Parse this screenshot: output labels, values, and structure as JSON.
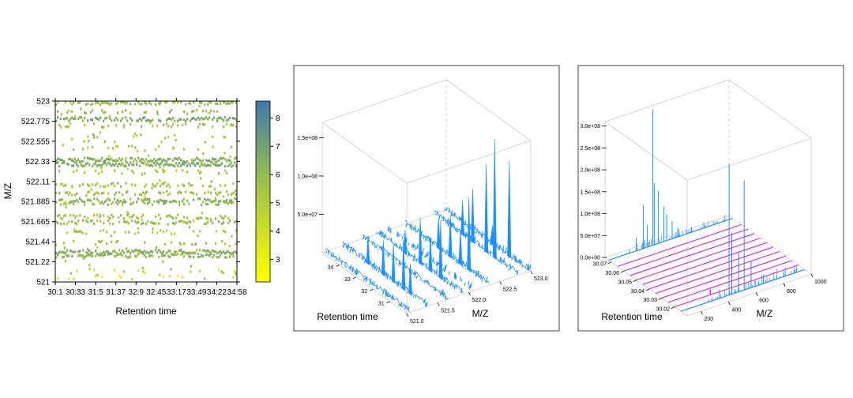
{
  "colors": {
    "background": "#ffffff",
    "panel_border": "#444444",
    "box_line": "#cccccc",
    "spectrum_blue": "#1e90ff",
    "series_magenta": "#e020e0",
    "colorbar_low": "#ffff00",
    "colorbar_mid": "#9cc24a",
    "colorbar_high": "#3f7aa8"
  },
  "chart_data": [
    {
      "type": "heatmap",
      "xlabel": "Retention time",
      "ylabel": "M/Z",
      "x_ticks": [
        "30:1",
        "30:33",
        "31:5",
        "31:37",
        "32:9",
        "32:45",
        "33:17",
        "33:49",
        "34:22",
        "34:58"
      ],
      "y_ticks": [
        "521",
        "521.22",
        "521.44",
        "521.665",
        "521.885",
        "522.11",
        "522.33",
        "522.555",
        "522.775",
        "523"
      ],
      "ylim": [
        521,
        523
      ],
      "colorbar": {
        "range": [
          2.2,
          8.6
        ],
        "ticks": [
          "3",
          "4",
          "5",
          "6",
          "7",
          "8"
        ],
        "colors": [
          "#ffff00",
          "#9cc24a",
          "#3f7aa8"
        ]
      },
      "bands": [
        {
          "mz": 522.98,
          "intensity": 5.8,
          "density": 0.55
        },
        {
          "mz": 522.88,
          "intensity": 6.0,
          "density": 0.25
        },
        {
          "mz": 522.8,
          "intensity": 6.6,
          "density": 0.8
        },
        {
          "mz": 522.73,
          "intensity": 5.5,
          "density": 0.3
        },
        {
          "mz": 522.6,
          "intensity": 5.0,
          "density": 0.12
        },
        {
          "mz": 522.48,
          "intensity": 5.2,
          "density": 0.15
        },
        {
          "mz": 522.35,
          "intensity": 6.4,
          "density": 0.85
        },
        {
          "mz": 522.3,
          "intensity": 6.6,
          "density": 0.9
        },
        {
          "mz": 522.22,
          "intensity": 5.3,
          "density": 0.2
        },
        {
          "mz": 522.07,
          "intensity": 5.4,
          "density": 0.4
        },
        {
          "mz": 521.98,
          "intensity": 5.6,
          "density": 0.45
        },
        {
          "mz": 521.9,
          "intensity": 6.2,
          "density": 0.6
        },
        {
          "mz": 521.87,
          "intensity": 5.9,
          "density": 0.55
        },
        {
          "mz": 521.72,
          "intensity": 5.5,
          "density": 0.45
        },
        {
          "mz": 521.66,
          "intensity": 5.8,
          "density": 0.6
        },
        {
          "mz": 521.55,
          "intensity": 5.2,
          "density": 0.25
        },
        {
          "mz": 521.43,
          "intensity": 5.4,
          "density": 0.3
        },
        {
          "mz": 521.33,
          "intensity": 6.4,
          "density": 0.85
        },
        {
          "mz": 521.29,
          "intensity": 6.0,
          "density": 0.7
        },
        {
          "mz": 521.12,
          "intensity": 4.0,
          "density": 0.08
        },
        {
          "mz": 521.05,
          "intensity": 3.5,
          "density": 0.1
        }
      ]
    },
    {
      "type": "surface3d",
      "xlabel": "Retention time",
      "ylabel": "M/Z",
      "x_ticks": [
        "31",
        "32",
        "33",
        "34"
      ],
      "y_ticks": [
        "521.0",
        "521.5",
        "522.0",
        "522.5",
        "523.0"
      ],
      "z_ticks": [
        "5.0e+07",
        "1.0e+08",
        "1.5e+08"
      ],
      "zlim": [
        0,
        170000000.0
      ],
      "peaks": [
        {
          "rt": 31.0,
          "mz": 521.33,
          "intensity": 40000000.0
        },
        {
          "rt": 31.4,
          "mz": 521.33,
          "intensity": 65000000.0
        },
        {
          "rt": 32.0,
          "mz": 521.33,
          "intensity": 50000000.0
        },
        {
          "rt": 32.6,
          "mz": 521.33,
          "intensity": 45000000.0
        },
        {
          "rt": 33.5,
          "mz": 521.33,
          "intensity": 35000000.0
        },
        {
          "rt": 31.3,
          "mz": 521.9,
          "intensity": 75000000.0
        },
        {
          "rt": 31.9,
          "mz": 521.9,
          "intensity": 45000000.0
        },
        {
          "rt": 32.5,
          "mz": 521.9,
          "intensity": 60000000.0
        },
        {
          "rt": 33.4,
          "mz": 521.9,
          "intensity": 30000000.0
        },
        {
          "rt": 31.2,
          "mz": 522.33,
          "intensity": 95000000.0
        },
        {
          "rt": 31.7,
          "mz": 522.33,
          "intensity": 45000000.0
        },
        {
          "rt": 32.3,
          "mz": 522.33,
          "intensity": 55000000.0
        },
        {
          "rt": 33.0,
          "mz": 522.33,
          "intensity": 40000000.0
        },
        {
          "rt": 31.4,
          "mz": 522.8,
          "intensity": 155000000.0
        },
        {
          "rt": 31.9,
          "mz": 522.8,
          "intensity": 115000000.0
        },
        {
          "rt": 32.7,
          "mz": 522.8,
          "intensity": 70000000.0
        },
        {
          "rt": 33.3,
          "mz": 522.8,
          "intensity": 45000000.0
        },
        {
          "rt": 31.2,
          "mz": 522.98,
          "intensity": 125000000.0
        },
        {
          "rt": 32.2,
          "mz": 522.98,
          "intensity": 25000000.0
        }
      ]
    },
    {
      "type": "spectra3d",
      "xlabel": "Retention time",
      "ylabel": "M/Z",
      "x_ticks": [
        "30.02",
        "30.03",
        "30.04",
        "30.05",
        "30.06",
        "30.07"
      ],
      "y_ticks": [
        "200",
        "400",
        "600",
        "800",
        "1000"
      ],
      "z_ticks": [
        "0.0e+00",
        "5.0e+07",
        "1.0e+08",
        "1.5e+08",
        "2.0e+08",
        "2.5e+08",
        "3.0e+08"
      ],
      "zlim": [
        0,
        310000000.0
      ],
      "spectra": [
        {
          "rt": 30.015,
          "highlight": true,
          "peaks": [
            [
              300,
              4000000.0
            ],
            [
              380,
              20000000.0
            ],
            [
              450,
              300000000.0
            ],
            [
              470,
              140000000.0
            ],
            [
              520,
              90000000.0
            ],
            [
              560,
              250000000.0
            ],
            [
              610,
              60000000.0
            ],
            [
              700,
              20000000.0
            ],
            [
              850,
              8000000.0
            ]
          ]
        },
        {
          "rt": 30.02,
          "highlight": false,
          "peaks": []
        },
        {
          "rt": 30.025,
          "highlight": false,
          "peaks": []
        },
        {
          "rt": 30.03,
          "highlight": false,
          "peaks": []
        },
        {
          "rt": 30.035,
          "highlight": false,
          "peaks": []
        },
        {
          "rt": 30.04,
          "highlight": false,
          "peaks": []
        },
        {
          "rt": 30.045,
          "highlight": false,
          "peaks": []
        },
        {
          "rt": 30.05,
          "highlight": false,
          "peaks": []
        },
        {
          "rt": 30.055,
          "highlight": false,
          "peaks": []
        },
        {
          "rt": 30.06,
          "highlight": false,
          "peaks": []
        },
        {
          "rt": 30.065,
          "highlight": false,
          "peaks": []
        },
        {
          "rt": 30.072,
          "highlight": true,
          "peaks": [
            [
              250,
              8000000.0
            ],
            [
              300,
              30000000.0
            ],
            [
              350,
              100000000.0
            ],
            [
              380,
              50000000.0
            ],
            [
              420,
              310000000.0
            ],
            [
              430,
              140000000.0
            ],
            [
              460,
              120000000.0
            ],
            [
              500,
              80000000.0
            ],
            [
              520,
              60000000.0
            ],
            [
              560,
              40000000.0
            ],
            [
              600,
              20000000.0
            ],
            [
              700,
              12000000.0
            ],
            [
              800,
              6000000.0
            ]
          ]
        }
      ]
    }
  ]
}
